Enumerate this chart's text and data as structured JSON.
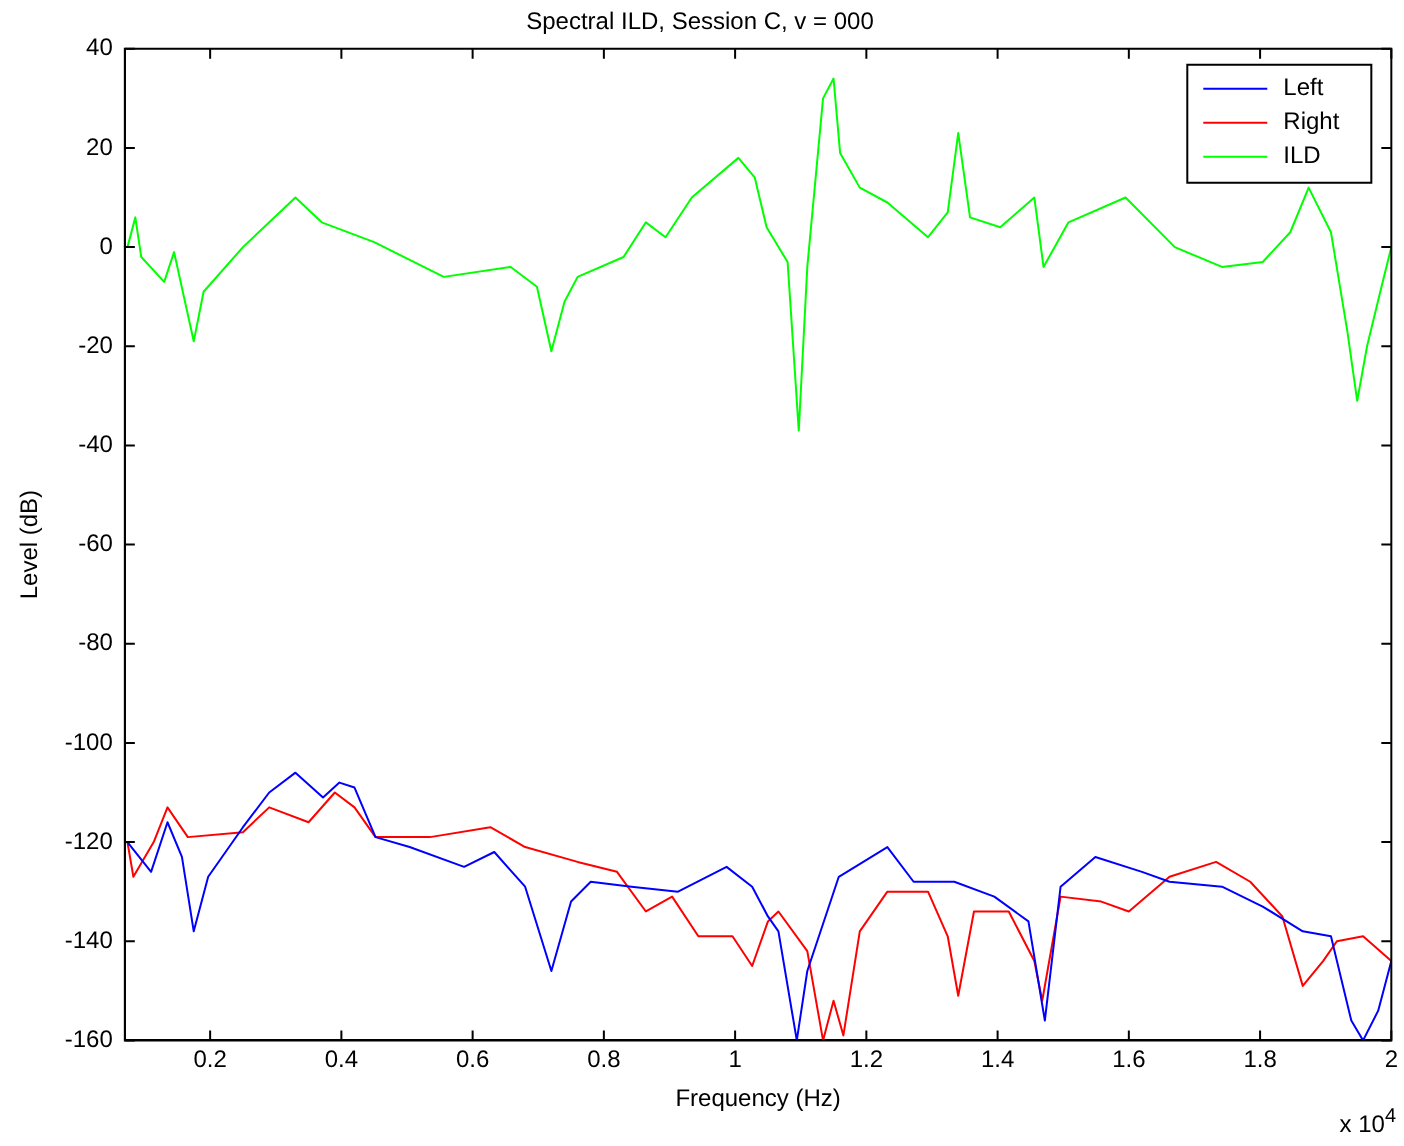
{
  "chart_data": {
    "type": "line",
    "title": "Spectral ILD, Session C, v = 000",
    "xlabel": "Frequency (Hz)",
    "ylabel": "Level (dB)",
    "annotations": [
      "x 10$^{4}$"
    ],
    "xlim": [
      0.07,
      2
    ],
    "xticks": [
      0.2,
      0.4,
      0.6,
      0.8,
      1,
      1.2,
      1.4,
      1.6,
      1.8,
      2
    ],
    "ylim": [
      -160,
      40
    ],
    "yticks": [
      -160,
      -140,
      -120,
      -100,
      -80,
      -60,
      -40,
      -20,
      0,
      20,
      40
    ],
    "grid": false,
    "legend": "top right",
    "marker": "none",
    "line_style": "solid",
    "series": [
      {
        "name": "Left",
        "color": "#0000ff",
        "x": [
          0.074,
          0.11,
          0.135,
          0.157,
          0.175,
          0.197,
          0.25,
          0.29,
          0.33,
          0.372,
          0.397,
          0.42,
          0.452,
          0.504,
          0.587,
          0.633,
          0.68,
          0.72,
          0.75,
          0.78,
          0.842,
          0.913,
          0.987,
          1.026,
          1.05,
          1.066,
          1.094,
          1.11,
          1.158,
          1.232,
          1.272,
          1.334,
          1.395,
          1.447,
          1.472,
          1.496,
          1.549,
          1.62,
          1.662,
          1.742,
          1.804,
          1.865,
          1.908,
          1.939,
          1.957,
          1.98,
          2.0
        ],
        "values": [
          -120,
          -126,
          -116,
          -123,
          -138,
          -127,
          -117,
          -110,
          -106,
          -111,
          -108,
          -109,
          -119,
          -121,
          -125,
          -122,
          -129,
          -146,
          -132,
          -128,
          -129,
          -130,
          -125,
          -129,
          -135,
          -138,
          -160,
          -146,
          -127,
          -121,
          -128,
          -128,
          -131,
          -136,
          -156,
          -129,
          -123,
          -126,
          -128,
          -129,
          -133,
          -138,
          -139,
          -156,
          -160,
          -154,
          -144
        ]
      },
      {
        "name": "Right",
        "color": "#ff0000",
        "x": [
          0.074,
          0.083,
          0.114,
          0.135,
          0.166,
          0.25,
          0.29,
          0.35,
          0.39,
          0.42,
          0.452,
          0.535,
          0.627,
          0.68,
          0.76,
          0.82,
          0.864,
          0.904,
          0.944,
          0.996,
          1.026,
          1.05,
          1.066,
          1.11,
          1.134,
          1.15,
          1.165,
          1.19,
          1.232,
          1.294,
          1.324,
          1.34,
          1.364,
          1.417,
          1.456,
          1.468,
          1.496,
          1.558,
          1.6,
          1.662,
          1.733,
          1.785,
          1.834,
          1.865,
          1.896,
          1.917,
          1.957,
          2.0
        ],
        "values": [
          -120,
          -127,
          -120,
          -113,
          -119,
          -118,
          -113,
          -116,
          -110,
          -113,
          -119,
          -119,
          -117,
          -121,
          -124,
          -126,
          -134,
          -131,
          -139,
          -139,
          -145,
          -136,
          -134,
          -142,
          -160,
          -152,
          -159,
          -138,
          -130,
          -130,
          -139,
          -151,
          -134,
          -134,
          -144,
          -152,
          -131,
          -132,
          -134,
          -127,
          -124,
          -128,
          -135,
          -149,
          -144,
          -140,
          -139,
          -144
        ]
      },
      {
        "name": "ILD",
        "color": "#00ff00",
        "x": [
          0.074,
          0.086,
          0.095,
          0.13,
          0.145,
          0.175,
          0.19,
          0.25,
          0.33,
          0.37,
          0.45,
          0.556,
          0.658,
          0.698,
          0.72,
          0.74,
          0.76,
          0.83,
          0.864,
          0.894,
          0.934,
          1.005,
          1.03,
          1.048,
          1.08,
          1.097,
          1.11,
          1.134,
          1.15,
          1.16,
          1.19,
          1.232,
          1.294,
          1.324,
          1.34,
          1.358,
          1.404,
          1.456,
          1.47,
          1.508,
          1.595,
          1.67,
          1.742,
          1.804,
          1.846,
          1.874,
          1.908,
          1.933,
          1.948,
          1.963,
          1.985,
          2.0
        ],
        "values": [
          0,
          6,
          -2,
          -7,
          -1,
          -19,
          -9,
          0,
          10,
          5,
          1,
          -6,
          -4,
          -8,
          -21,
          -11,
          -6,
          -2,
          5,
          2,
          10,
          18,
          14,
          4,
          -3,
          -37,
          -4,
          30,
          34,
          19,
          12,
          9,
          2,
          7,
          23,
          6,
          4,
          10,
          -4,
          5,
          10,
          0,
          -4,
          -3,
          3,
          12,
          3,
          -17,
          -31,
          -20,
          -8,
          0
        ]
      }
    ]
  }
}
